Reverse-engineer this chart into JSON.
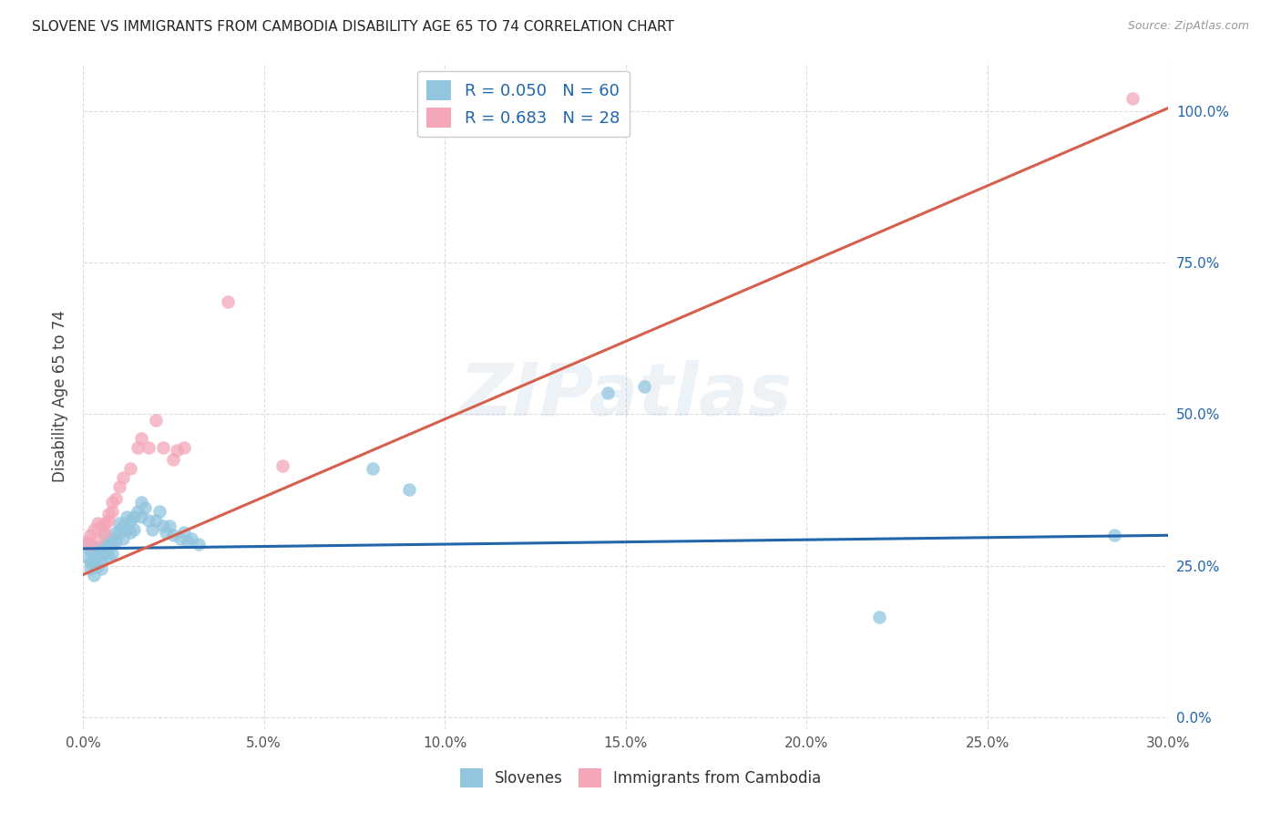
{
  "title": "SLOVENE VS IMMIGRANTS FROM CAMBODIA DISABILITY AGE 65 TO 74 CORRELATION CHART",
  "source": "Source: ZipAtlas.com",
  "ylabel_label": "Disability Age 65 to 74",
  "legend_labels": [
    "Slovenes",
    "Immigrants from Cambodia"
  ],
  "blue_color": "#92c5de",
  "pink_color": "#f4a6b8",
  "line_blue": "#2166ac",
  "line_pink": "#d6604d",
  "watermark_text": "ZIPatlas",
  "xlim": [
    0.0,
    0.3
  ],
  "ylim": [
    -0.02,
    1.08
  ],
  "x_tick_positions": [
    0.0,
    0.05,
    0.1,
    0.15,
    0.2,
    0.25,
    0.3
  ],
  "y_tick_positions": [
    0.0,
    0.25,
    0.5,
    0.75,
    1.0
  ],
  "y_tick_labels": [
    "0.0%",
    "25.0%",
    "50.0%",
    "75.0%",
    "100.0%"
  ],
  "x_tick_labels": [
    "0.0%",
    "5.0%",
    "10.0%",
    "15.0%",
    "20.0%",
    "25.0%",
    "30.0%"
  ],
  "legend_r_blue": "R = 0.050",
  "legend_n_blue": "N = 60",
  "legend_r_pink": "R = 0.683",
  "legend_n_pink": "N = 28",
  "blue_scatter_x": [
    0.001,
    0.001,
    0.002,
    0.002,
    0.002,
    0.003,
    0.003,
    0.003,
    0.003,
    0.004,
    0.004,
    0.004,
    0.005,
    0.005,
    0.005,
    0.005,
    0.006,
    0.006,
    0.006,
    0.007,
    0.007,
    0.007,
    0.008,
    0.008,
    0.008,
    0.009,
    0.009,
    0.01,
    0.01,
    0.011,
    0.011,
    0.012,
    0.012,
    0.013,
    0.013,
    0.014,
    0.014,
    0.015,
    0.016,
    0.016,
    0.017,
    0.018,
    0.019,
    0.02,
    0.021,
    0.022,
    0.023,
    0.024,
    0.025,
    0.027,
    0.028,
    0.029,
    0.03,
    0.032,
    0.08,
    0.09,
    0.145,
    0.155,
    0.22,
    0.285
  ],
  "blue_scatter_y": [
    0.285,
    0.265,
    0.275,
    0.255,
    0.245,
    0.27,
    0.26,
    0.25,
    0.235,
    0.28,
    0.265,
    0.25,
    0.275,
    0.27,
    0.26,
    0.245,
    0.3,
    0.285,
    0.27,
    0.29,
    0.28,
    0.265,
    0.295,
    0.285,
    0.27,
    0.305,
    0.29,
    0.32,
    0.305,
    0.315,
    0.295,
    0.33,
    0.31,
    0.325,
    0.305,
    0.33,
    0.31,
    0.34,
    0.355,
    0.33,
    0.345,
    0.325,
    0.31,
    0.325,
    0.34,
    0.315,
    0.305,
    0.315,
    0.3,
    0.295,
    0.305,
    0.29,
    0.295,
    0.285,
    0.41,
    0.375,
    0.535,
    0.545,
    0.165,
    0.3
  ],
  "pink_scatter_x": [
    0.001,
    0.002,
    0.002,
    0.003,
    0.004,
    0.004,
    0.005,
    0.006,
    0.006,
    0.007,
    0.007,
    0.008,
    0.008,
    0.009,
    0.01,
    0.011,
    0.013,
    0.015,
    0.016,
    0.018,
    0.02,
    0.022,
    0.025,
    0.026,
    0.028,
    0.04,
    0.055,
    0.29
  ],
  "pink_scatter_y": [
    0.29,
    0.3,
    0.285,
    0.31,
    0.295,
    0.32,
    0.315,
    0.32,
    0.305,
    0.335,
    0.325,
    0.355,
    0.34,
    0.36,
    0.38,
    0.395,
    0.41,
    0.445,
    0.46,
    0.445,
    0.49,
    0.445,
    0.425,
    0.44,
    0.445,
    0.685,
    0.415,
    1.02
  ],
  "blue_line_x": [
    0.0,
    0.3
  ],
  "blue_line_y": [
    0.278,
    0.3
  ],
  "pink_line_x": [
    0.0,
    0.3
  ],
  "pink_line_y": [
    0.235,
    1.005
  ],
  "grid_color": "#d9d9d9",
  "background_color": "#ffffff",
  "tick_label_color_right": "#2166ac",
  "tick_label_color_bottom": "#555555"
}
